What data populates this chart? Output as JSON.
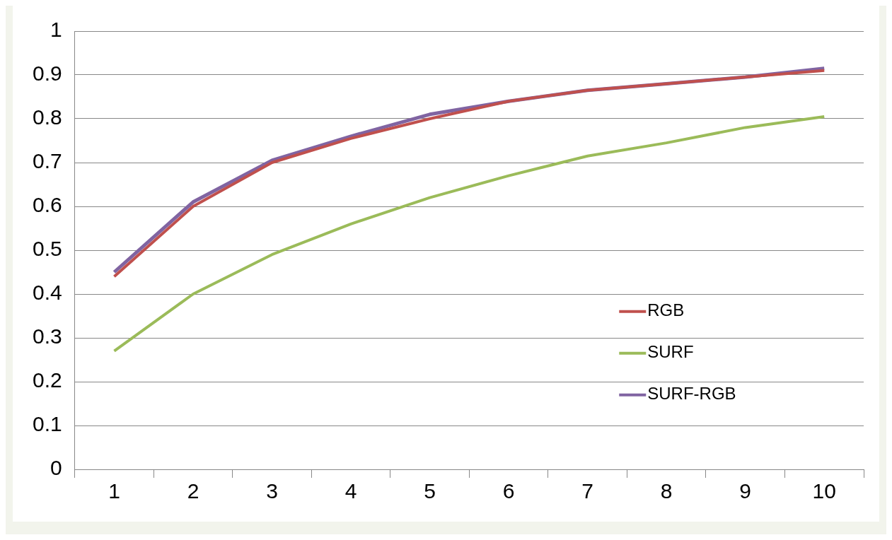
{
  "chart_data": {
    "type": "line",
    "categories": [
      "1",
      "2",
      "3",
      "4",
      "5",
      "6",
      "7",
      "8",
      "9",
      "10"
    ],
    "series": [
      {
        "name": "RGB",
        "color": "#c0504d",
        "values": [
          0.44,
          0.6,
          0.7,
          0.755,
          0.8,
          0.84,
          0.865,
          0.88,
          0.895,
          0.91
        ]
      },
      {
        "name": "SURF",
        "color": "#9bbb59",
        "values": [
          0.27,
          0.4,
          0.49,
          0.56,
          0.62,
          0.67,
          0.715,
          0.745,
          0.78,
          0.805
        ]
      },
      {
        "name": "SURF-RGB",
        "color": "#8064a2",
        "values": [
          0.45,
          0.61,
          0.705,
          0.76,
          0.81,
          0.84,
          0.865,
          0.88,
          0.895,
          0.915
        ]
      }
    ],
    "ylim": [
      0,
      1
    ],
    "yticks": [
      0,
      0.1,
      0.2,
      0.3,
      0.4,
      0.5,
      0.6,
      0.7,
      0.8,
      0.9,
      1
    ],
    "grid": "y",
    "legend": "bottom right",
    "marker": "none",
    "line_style": "solid"
  }
}
